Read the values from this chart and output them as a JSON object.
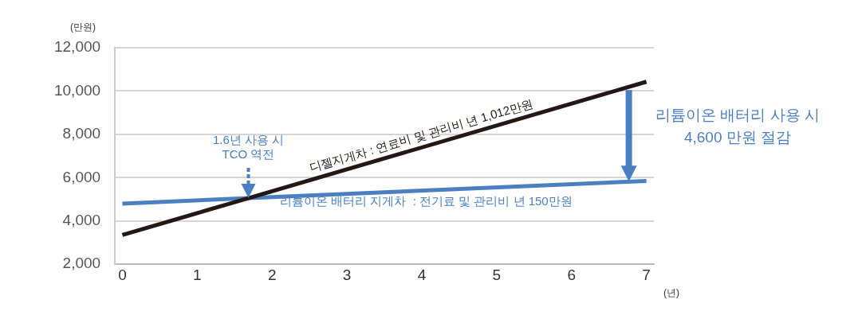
{
  "chart_data": {
    "type": "line",
    "ylabel": "(만원)",
    "xlabel": "(년)",
    "x": [
      0,
      7
    ],
    "series": [
      {
        "name": "디젤지게차 : 연료비 및 관리비 년 1,012만원",
        "color": "#231815",
        "values": [
          3350,
          10430
        ]
      },
      {
        "name": "리튬이온 배터리 지게차  : 전기료 및 관리비 년 150만원",
        "color": "#4a7fc1",
        "values": [
          4800,
          5850
        ]
      }
    ],
    "xlim": [
      -0.1,
      7.1
    ],
    "xticks": [
      0,
      1,
      2,
      3,
      4,
      5,
      6,
      7
    ],
    "ylim": [
      2000,
      12000
    ],
    "yticks": [
      {
        "value": 2000,
        "label": "2,000"
      },
      {
        "value": 4000,
        "label": "4,000"
      },
      {
        "value": 6000,
        "label": "6,000"
      },
      {
        "value": 8000,
        "label": "8,000"
      },
      {
        "value": 10000,
        "label": "10,000"
      },
      {
        "value": 12000,
        "label": "12,000"
      }
    ],
    "annotations": [
      "1.6년 사용 시\nTCO 역전",
      "리튬이온 배터리 사용 시\n4,600 만원 절감"
    ],
    "grid": "y",
    "legend": false,
    "marker": "none",
    "line_style": "solid"
  }
}
